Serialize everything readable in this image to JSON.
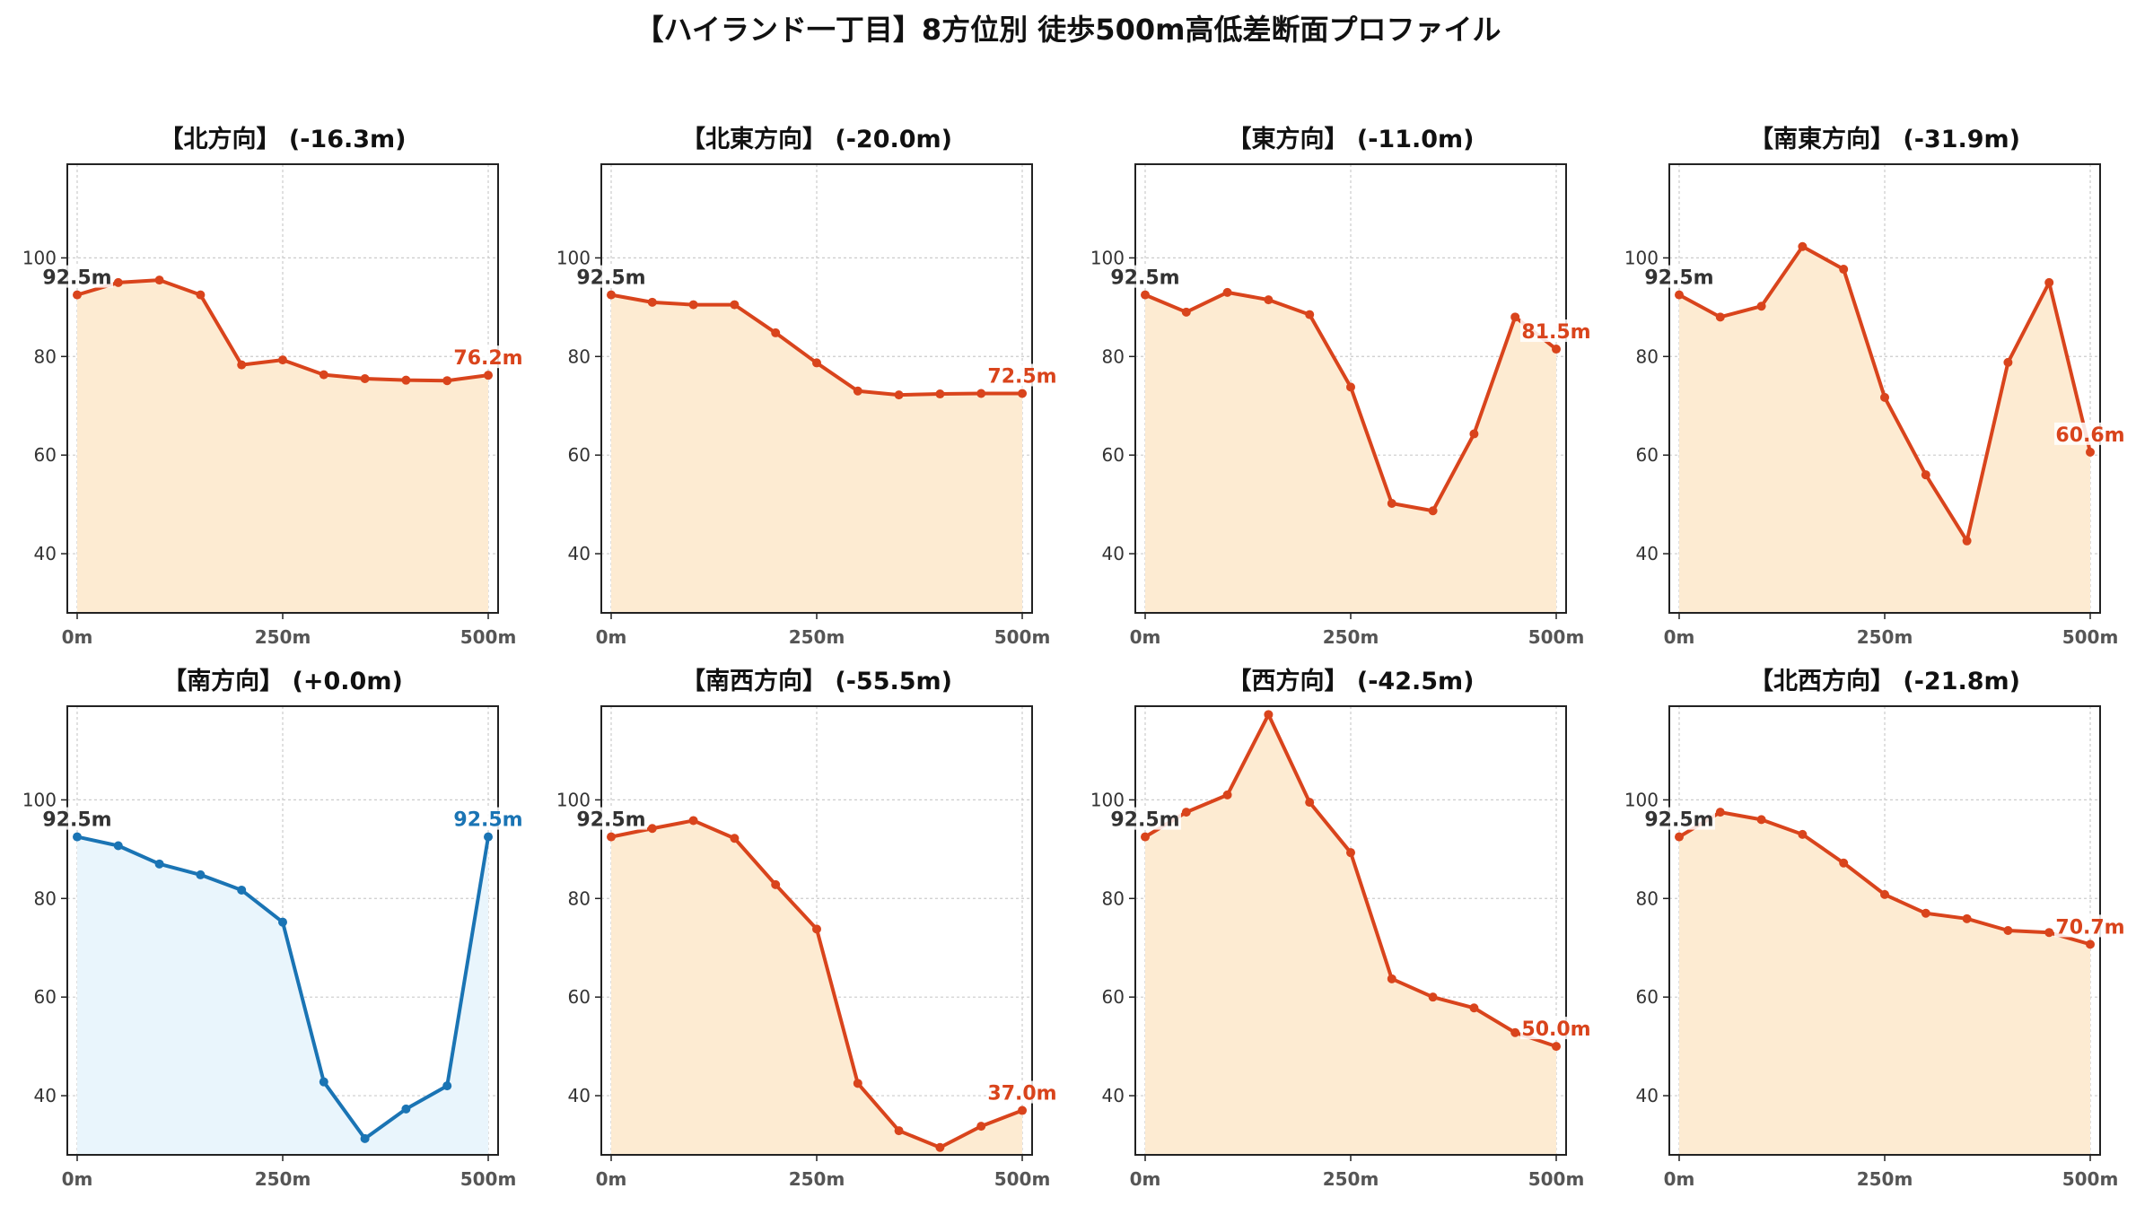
{
  "figure_title": "【ハイランド一丁目】8方位別 徒歩500m高低差断面プロファイル",
  "colors": {
    "descend": "#d9441c",
    "descend_fill": "#fdebd2",
    "rise": "#1a74b4",
    "rise_fill": "#e9f5fc",
    "start_label": "#333333"
  },
  "chart_data": [
    {
      "type": "area",
      "title": "【北方向】 (-16.3m)",
      "trend": "descend",
      "x": [
        0,
        50,
        100,
        150,
        200,
        250,
        300,
        350,
        400,
        450,
        500
      ],
      "values": [
        92.5,
        95.0,
        95.5,
        92.5,
        78.3,
        79.3,
        76.3,
        75.5,
        75.2,
        75.1,
        76.2
      ],
      "start_label": "92.5m",
      "end_label": "76.2m",
      "xticks": [
        0,
        250,
        500
      ],
      "xtick_labels": [
        "0m",
        "250m",
        "500m"
      ],
      "yticks": [
        40,
        60,
        80,
        100
      ],
      "ylim": [
        28,
        119
      ],
      "xlim": [
        -12,
        512
      ],
      "grid": true
    },
    {
      "type": "area",
      "title": "【北東方向】 (-20.0m)",
      "trend": "descend",
      "x": [
        0,
        50,
        100,
        150,
        200,
        250,
        300,
        350,
        400,
        450,
        500
      ],
      "values": [
        92.5,
        91.0,
        90.5,
        90.5,
        84.8,
        78.7,
        73.0,
        72.2,
        72.4,
        72.5,
        72.5
      ],
      "start_label": "92.5m",
      "end_label": "72.5m",
      "xticks": [
        0,
        250,
        500
      ],
      "xtick_labels": [
        "0m",
        "250m",
        "500m"
      ],
      "yticks": [
        40,
        60,
        80,
        100
      ],
      "ylim": [
        28,
        119
      ],
      "xlim": [
        -12,
        512
      ],
      "grid": true
    },
    {
      "type": "area",
      "title": "【東方向】 (-11.0m)",
      "trend": "descend",
      "x": [
        0,
        50,
        100,
        150,
        200,
        250,
        300,
        350,
        400,
        450,
        500
      ],
      "values": [
        92.5,
        89.0,
        93.0,
        91.5,
        88.5,
        73.8,
        50.2,
        48.7,
        64.3,
        88.0,
        81.5
      ],
      "start_label": "92.5m",
      "end_label": "81.5m",
      "xticks": [
        0,
        250,
        500
      ],
      "xtick_labels": [
        "0m",
        "250m",
        "500m"
      ],
      "yticks": [
        40,
        60,
        80,
        100
      ],
      "ylim": [
        28,
        119
      ],
      "xlim": [
        -12,
        512
      ],
      "grid": true
    },
    {
      "type": "area",
      "title": "【南東方向】 (-31.9m)",
      "trend": "descend",
      "x": [
        0,
        50,
        100,
        150,
        200,
        250,
        300,
        350,
        400,
        450,
        500
      ],
      "values": [
        92.5,
        88.0,
        90.2,
        102.3,
        97.7,
        71.7,
        56.0,
        42.6,
        78.8,
        95.0,
        60.6
      ],
      "start_label": "92.5m",
      "end_label": "60.6m",
      "xticks": [
        0,
        250,
        500
      ],
      "xtick_labels": [
        "0m",
        "250m",
        "500m"
      ],
      "yticks": [
        40,
        60,
        80,
        100
      ],
      "ylim": [
        28,
        119
      ],
      "xlim": [
        -12,
        512
      ],
      "grid": true
    },
    {
      "type": "area",
      "title": "【南方向】 (+0.0m)",
      "trend": "rise",
      "x": [
        0,
        50,
        100,
        150,
        200,
        250,
        300,
        350,
        400,
        450,
        500
      ],
      "values": [
        92.5,
        90.7,
        87.0,
        84.8,
        81.7,
        75.2,
        42.8,
        31.3,
        37.3,
        42.0,
        92.5
      ],
      "start_label": "92.5m",
      "end_label": "92.5m",
      "xticks": [
        0,
        250,
        500
      ],
      "xtick_labels": [
        "0m",
        "250m",
        "500m"
      ],
      "yticks": [
        40,
        60,
        80,
        100
      ],
      "ylim": [
        28,
        119
      ],
      "xlim": [
        -12,
        512
      ],
      "grid": true
    },
    {
      "type": "area",
      "title": "【南西方向】 (-55.5m)",
      "trend": "descend",
      "x": [
        0,
        50,
        100,
        150,
        200,
        250,
        300,
        350,
        400,
        450,
        500
      ],
      "values": [
        92.5,
        94.2,
        95.8,
        92.2,
        82.8,
        73.8,
        42.5,
        32.9,
        29.5,
        33.8,
        37.0
      ],
      "start_label": "92.5m",
      "end_label": "37.0m",
      "xticks": [
        0,
        250,
        500
      ],
      "xtick_labels": [
        "0m",
        "250m",
        "500m"
      ],
      "yticks": [
        40,
        60,
        80,
        100
      ],
      "ylim": [
        28,
        119
      ],
      "xlim": [
        -12,
        512
      ],
      "grid": true
    },
    {
      "type": "area",
      "title": "【西方向】 (-42.5m)",
      "trend": "descend",
      "x": [
        0,
        50,
        100,
        150,
        200,
        250,
        300,
        350,
        400,
        450,
        500
      ],
      "values": [
        92.5,
        97.5,
        101.0,
        117.3,
        99.5,
        89.3,
        63.7,
        60.0,
        57.8,
        52.8,
        50.0
      ],
      "start_label": "92.5m",
      "end_label": "50.0m",
      "xticks": [
        0,
        250,
        500
      ],
      "xtick_labels": [
        "0m",
        "250m",
        "500m"
      ],
      "yticks": [
        40,
        60,
        80,
        100
      ],
      "ylim": [
        28,
        119
      ],
      "xlim": [
        -12,
        512
      ],
      "grid": true
    },
    {
      "type": "area",
      "title": "【北西方向】 (-21.8m)",
      "trend": "descend",
      "x": [
        0,
        50,
        100,
        150,
        200,
        250,
        300,
        350,
        400,
        450,
        500
      ],
      "values": [
        92.5,
        97.5,
        96.0,
        93.0,
        87.2,
        80.8,
        77.0,
        75.9,
        73.5,
        73.1,
        70.7
      ],
      "start_label": "92.5m",
      "end_label": "70.7m",
      "xticks": [
        0,
        250,
        500
      ],
      "xtick_labels": [
        "0m",
        "250m",
        "500m"
      ],
      "yticks": [
        40,
        60,
        80,
        100
      ],
      "ylim": [
        28,
        119
      ],
      "xlim": [
        -12,
        512
      ],
      "grid": true
    }
  ]
}
